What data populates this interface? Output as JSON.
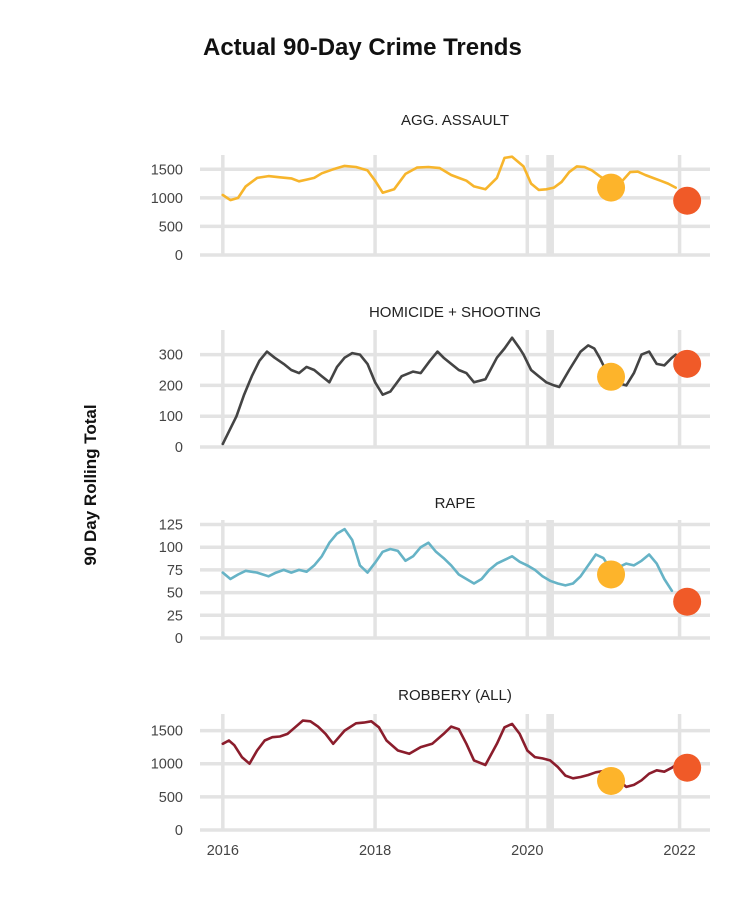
{
  "page_title": "Actual 90-Day Crime Trends",
  "y_axis_label": "90 Day Rolling Total",
  "colors": {
    "grid": "#e3e3e3",
    "shade": "#e3e3e3",
    "marker_prev_year": "#fdb42b",
    "marker_current": "#f05a28"
  },
  "chart_data": [
    {
      "type": "line",
      "title": "AGG. ASSAULT",
      "color": "#f7b52c",
      "xlim": [
        2015.7,
        2022.4
      ],
      "ylim": [
        0,
        1750
      ],
      "yticks": [
        0,
        500,
        1000,
        1500
      ],
      "ytick_labels": [
        "0",
        "500",
        "1000",
        "1500"
      ],
      "xticks": [
        2016,
        2018,
        2020,
        2022
      ],
      "x": [
        2016.0,
        2016.1,
        2016.2,
        2016.3,
        2016.45,
        2016.6,
        2016.75,
        2016.9,
        2017.0,
        2017.1,
        2017.2,
        2017.3,
        2017.45,
        2017.6,
        2017.75,
        2017.9,
        2018.0,
        2018.1,
        2018.25,
        2018.4,
        2018.55,
        2018.7,
        2018.85,
        2019.0,
        2019.1,
        2019.2,
        2019.3,
        2019.45,
        2019.6,
        2019.7,
        2019.8,
        2019.95,
        2020.05,
        2020.15,
        2020.25,
        2020.35,
        2020.45,
        2020.55,
        2020.65,
        2020.75,
        2020.85,
        2020.95,
        2021.05,
        2021.15,
        2021.25,
        2021.35,
        2021.45,
        2021.55,
        2021.65,
        2021.75,
        2021.85,
        2021.95
      ],
      "y": [
        1050,
        960,
        1000,
        1200,
        1350,
        1380,
        1360,
        1340,
        1290,
        1320,
        1350,
        1430,
        1500,
        1560,
        1540,
        1480,
        1300,
        1090,
        1150,
        1420,
        1530,
        1540,
        1520,
        1400,
        1350,
        1300,
        1200,
        1150,
        1350,
        1700,
        1720,
        1550,
        1250,
        1140,
        1150,
        1180,
        1280,
        1450,
        1550,
        1540,
        1480,
        1380,
        1300,
        1200,
        1300,
        1450,
        1460,
        1400,
        1350,
        1300,
        1250,
        1180
      ],
      "markers": [
        {
          "x": 2021.1,
          "y": 1180,
          "color": "#fdb42b"
        },
        {
          "x": 2022.1,
          "y": 950,
          "color": "#f05a28"
        }
      ]
    },
    {
      "type": "line",
      "title": "HOMICIDE + SHOOTING",
      "color": "#444444",
      "xlim": [
        2015.7,
        2022.4
      ],
      "ylim": [
        0,
        380
      ],
      "yticks": [
        0,
        100,
        200,
        300
      ],
      "ytick_labels": [
        "0",
        "100",
        "200",
        "300"
      ],
      "xticks": [
        2016,
        2018,
        2020,
        2022
      ],
      "x": [
        2016.0,
        2016.08,
        2016.18,
        2016.28,
        2016.38,
        2016.48,
        2016.58,
        2016.68,
        2016.8,
        2016.9,
        2017.0,
        2017.1,
        2017.2,
        2017.3,
        2017.4,
        2017.5,
        2017.6,
        2017.7,
        2017.8,
        2017.9,
        2018.0,
        2018.1,
        2018.2,
        2018.35,
        2018.5,
        2018.6,
        2018.72,
        2018.82,
        2018.9,
        2019.0,
        2019.1,
        2019.2,
        2019.3,
        2019.45,
        2019.6,
        2019.7,
        2019.8,
        2019.9,
        2019.95,
        2020.05,
        2020.15,
        2020.25,
        2020.35,
        2020.42,
        2020.55,
        2020.7,
        2020.8,
        2020.88,
        2020.95,
        2021.05,
        2021.15,
        2021.3,
        2021.4,
        2021.5,
        2021.6,
        2021.7,
        2021.8,
        2021.9,
        2021.95
      ],
      "y": [
        10,
        50,
        100,
        170,
        230,
        280,
        310,
        290,
        270,
        250,
        240,
        260,
        250,
        230,
        210,
        260,
        290,
        305,
        300,
        270,
        210,
        170,
        180,
        230,
        245,
        240,
        280,
        310,
        290,
        270,
        250,
        240,
        210,
        220,
        290,
        320,
        355,
        320,
        300,
        250,
        230,
        210,
        200,
        195,
        250,
        310,
        330,
        320,
        290,
        240,
        210,
        200,
        240,
        300,
        310,
        270,
        265,
        290,
        300
      ],
      "markers": [
        {
          "x": 2021.1,
          "y": 228,
          "color": "#fdb42b"
        },
        {
          "x": 2022.1,
          "y": 270,
          "color": "#f05a28"
        }
      ]
    },
    {
      "type": "line",
      "title": "RAPE",
      "color": "#66b3c6",
      "xlim": [
        2015.7,
        2022.4
      ],
      "ylim": [
        0,
        130
      ],
      "yticks": [
        0,
        25,
        50,
        75,
        100,
        125
      ],
      "ytick_labels": [
        "0",
        "25",
        "50",
        "75",
        "100",
        "125"
      ],
      "xticks": [
        2016,
        2018,
        2020,
        2022
      ],
      "x": [
        2016.0,
        2016.1,
        2016.2,
        2016.3,
        2016.45,
        2016.6,
        2016.7,
        2016.8,
        2016.9,
        2017.0,
        2017.1,
        2017.2,
        2017.3,
        2017.4,
        2017.5,
        2017.6,
        2017.7,
        2017.8,
        2017.9,
        2018.0,
        2018.1,
        2018.2,
        2018.3,
        2018.4,
        2018.5,
        2018.6,
        2018.7,
        2018.8,
        2018.9,
        2019.0,
        2019.1,
        2019.2,
        2019.3,
        2019.4,
        2019.5,
        2019.6,
        2019.7,
        2019.8,
        2019.9,
        2020.0,
        2020.1,
        2020.2,
        2020.3,
        2020.4,
        2020.5,
        2020.6,
        2020.7,
        2020.8,
        2020.9,
        2021.0,
        2021.1,
        2021.2,
        2021.3,
        2021.4,
        2021.5,
        2021.6,
        2021.7,
        2021.8,
        2021.9
      ],
      "y": [
        72,
        65,
        70,
        74,
        72,
        68,
        72,
        75,
        72,
        75,
        73,
        80,
        90,
        105,
        115,
        120,
        108,
        80,
        72,
        83,
        95,
        98,
        96,
        85,
        90,
        100,
        105,
        95,
        88,
        80,
        70,
        65,
        60,
        65,
        75,
        82,
        86,
        90,
        84,
        80,
        75,
        68,
        63,
        60,
        58,
        60,
        68,
        80,
        92,
        88,
        75,
        78,
        82,
        80,
        85,
        92,
        82,
        65,
        52
      ],
      "markers": [
        {
          "x": 2021.1,
          "y": 70,
          "color": "#fdb42b"
        },
        {
          "x": 2022.1,
          "y": 40,
          "color": "#f05a28"
        }
      ]
    },
    {
      "type": "line",
      "title": "ROBBERY (ALL)",
      "color": "#8b1d2c",
      "xlim": [
        2015.7,
        2022.4
      ],
      "ylim": [
        0,
        1750
      ],
      "yticks": [
        0,
        500,
        1000,
        1500
      ],
      "ytick_labels": [
        "0",
        "500",
        "1000",
        "1500"
      ],
      "xticks": [
        2016,
        2018,
        2020,
        2022
      ],
      "x": [
        2016.0,
        2016.08,
        2016.15,
        2016.25,
        2016.35,
        2016.45,
        2016.55,
        2016.65,
        2016.75,
        2016.85,
        2016.95,
        2017.05,
        2017.15,
        2017.25,
        2017.35,
        2017.45,
        2017.6,
        2017.75,
        2017.85,
        2017.95,
        2018.05,
        2018.15,
        2018.3,
        2018.45,
        2018.6,
        2018.75,
        2018.9,
        2019.0,
        2019.1,
        2019.2,
        2019.3,
        2019.45,
        2019.6,
        2019.7,
        2019.8,
        2019.9,
        2020.0,
        2020.1,
        2020.2,
        2020.3,
        2020.4,
        2020.5,
        2020.6,
        2020.7,
        2020.8,
        2020.9,
        2021.0,
        2021.1,
        2021.2,
        2021.3,
        2021.4,
        2021.5,
        2021.6,
        2021.7,
        2021.8,
        2021.9,
        2021.95
      ],
      "y": [
        1300,
        1350,
        1280,
        1100,
        1000,
        1200,
        1350,
        1400,
        1410,
        1450,
        1550,
        1650,
        1640,
        1560,
        1450,
        1300,
        1500,
        1610,
        1620,
        1640,
        1550,
        1350,
        1200,
        1150,
        1250,
        1300,
        1450,
        1560,
        1520,
        1300,
        1050,
        980,
        1300,
        1550,
        1600,
        1450,
        1200,
        1100,
        1080,
        1050,
        950,
        820,
        780,
        800,
        830,
        870,
        890,
        860,
        750,
        650,
        680,
        750,
        850,
        900,
        880,
        940,
        980
      ],
      "markers": [
        {
          "x": 2021.1,
          "y": 740,
          "color": "#fdb42b"
        },
        {
          "x": 2022.1,
          "y": 940,
          "color": "#f05a28"
        }
      ]
    }
  ]
}
